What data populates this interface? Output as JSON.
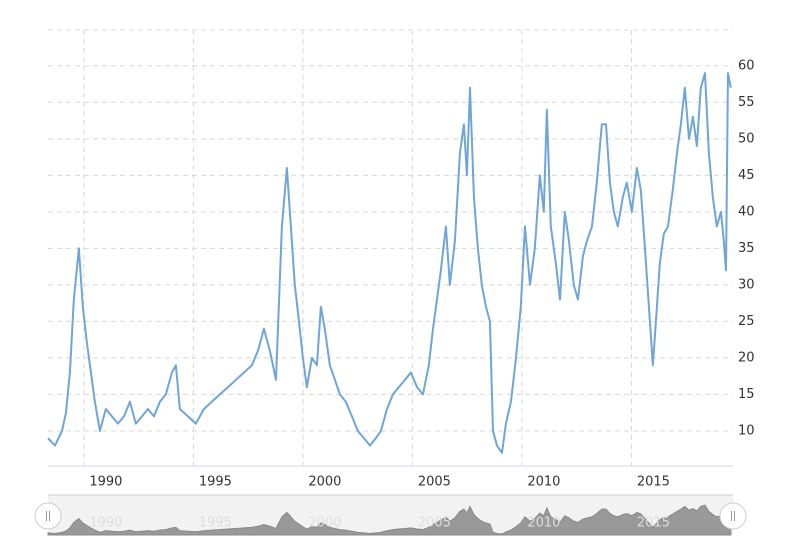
{
  "chart_data": {
    "type": "line",
    "color": "#6fa5d9",
    "grid": true,
    "x": [
      1988.36,
      1988.68,
      1989.0,
      1989.18,
      1989.36,
      1989.54,
      1989.77,
      1989.95,
      1990.14,
      1990.32,
      1990.5,
      1990.73,
      1991.0,
      1991.28,
      1991.55,
      1991.83,
      1992.1,
      1992.37,
      1992.65,
      1992.92,
      1993.2,
      1993.47,
      1993.74,
      1994.02,
      1994.2,
      1994.38,
      1994.75,
      1995.11,
      1995.48,
      1995.84,
      1996.21,
      1996.58,
      1996.94,
      1997.31,
      1997.67,
      1997.95,
      1998.22,
      1998.49,
      1998.77,
      1998.9,
      1999.04,
      1999.27,
      1999.45,
      1999.63,
      1999.82,
      2000.0,
      2000.18,
      2000.41,
      2000.64,
      2000.82,
      2001.0,
      2001.23,
      2001.46,
      2001.69,
      2001.96,
      2002.24,
      2002.51,
      2002.79,
      2003.06,
      2003.33,
      2003.56,
      2003.84,
      2004.11,
      2004.38,
      2004.66,
      2004.93,
      2005.21,
      2005.48,
      2005.75,
      2005.94,
      2006.12,
      2006.3,
      2006.53,
      2006.71,
      2006.94,
      2007.17,
      2007.35,
      2007.49,
      2007.63,
      2007.81,
      2007.99,
      2008.17,
      2008.36,
      2008.54,
      2008.68,
      2008.86,
      2009.09,
      2009.27,
      2009.5,
      2009.73,
      2009.95,
      2010.14,
      2010.37,
      2010.59,
      2010.82,
      2011.0,
      2011.14,
      2011.32,
      2011.55,
      2011.74,
      2011.96,
      2012.15,
      2012.37,
      2012.56,
      2012.79,
      2012.97,
      2013.2,
      2013.42,
      2013.65,
      2013.84,
      2014.02,
      2014.2,
      2014.38,
      2014.61,
      2014.79,
      2015.02,
      2015.25,
      2015.43,
      2015.62,
      2015.8,
      2015.98,
      2016.12,
      2016.3,
      2016.48,
      2016.67,
      2016.89,
      2017.08,
      2017.26,
      2017.44,
      2017.63,
      2017.81,
      2017.99,
      2018.17,
      2018.36,
      2018.54,
      2018.72,
      2018.9,
      2019.09,
      2019.22,
      2019.32,
      2019.41,
      2019.54
    ],
    "values": [
      9,
      8,
      10,
      12.5,
      18,
      28,
      35,
      27,
      22,
      18,
      14,
      10,
      13,
      12,
      11,
      12,
      14,
      11,
      12,
      13,
      12,
      14,
      15,
      18,
      19,
      13,
      12,
      11,
      13,
      14,
      15,
      16,
      17,
      18,
      19,
      21,
      24,
      21,
      17,
      27,
      38,
      46,
      38,
      30,
      25,
      20,
      16,
      20,
      19,
      27,
      24,
      19,
      17,
      15,
      14,
      12,
      10,
      9,
      8,
      9,
      10,
      13,
      15,
      16,
      17,
      18,
      16,
      15,
      19,
      24,
      28,
      32,
      38,
      30,
      36,
      48,
      52,
      45,
      57,
      42,
      35,
      30,
      27,
      25,
      10,
      8,
      7,
      11,
      14,
      20,
      27,
      38,
      30,
      35,
      45,
      40,
      54,
      38,
      33,
      28,
      40,
      36,
      30,
      28,
      34,
      36,
      38,
      44,
      52,
      52,
      44,
      40,
      38,
      42,
      44,
      40,
      46,
      43,
      35,
      27,
      19,
      25,
      33,
      37,
      38,
      43,
      48,
      52,
      57,
      50,
      53,
      49,
      57,
      59,
      48,
      42,
      38,
      40,
      36,
      32,
      59,
      57
    ],
    "xlim": [
      1988.36,
      2019.64
    ],
    "xticks": [
      1990,
      1995,
      2000,
      2005,
      2010,
      2015
    ],
    "ylim": [
      5.2,
      64.9
    ],
    "yticks": [
      10,
      15,
      20,
      25,
      30,
      35,
      40,
      45,
      50,
      55,
      60
    ]
  }
}
